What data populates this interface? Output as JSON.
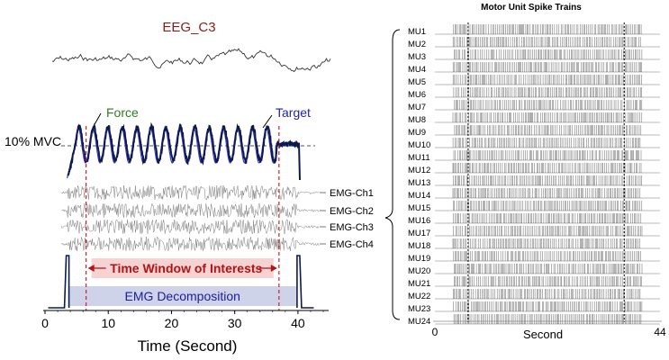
{
  "chart_data": [
    {
      "type": "line",
      "panel": "left",
      "eeg_label": "EEG_C3",
      "force_label": "Force",
      "target_label": "Target",
      "mvc_label": "10% MVC",
      "emg_channels": [
        "EMG-Ch1",
        "EMG-Ch2",
        "EMG-Ch3",
        "EMG-Ch4"
      ],
      "window_label": "Time Window of Interests",
      "decomp_label": "EMG Decomposition",
      "xlabel": "Time (Second)",
      "xticks": [
        0,
        10,
        20,
        30,
        40
      ],
      "xlim": [
        0,
        44
      ],
      "window_start": 6.5,
      "window_end": 37,
      "force_onset": 3.5,
      "force_offset": 40,
      "target_cycles": 15,
      "colors": {
        "eeg_label": "#8b1a1a",
        "force_label": "#2e7d1e",
        "target_label": "#1f1fb0",
        "force_line": "#0d1a4d",
        "target_line": "#3a3ad0",
        "window_line": "#d62020",
        "window_fill": "#f6d2d2",
        "window_text": "#b01515",
        "decomp_fill": "#cfd3ea",
        "decomp_text": "#1c1c9a",
        "emg": "#7a7a7a"
      }
    },
    {
      "type": "raster",
      "panel": "right",
      "title": "Motor Unit Spike Trains",
      "xlabel": "Second",
      "xticks": [
        0,
        44
      ],
      "xlim": [
        0,
        44
      ],
      "window_start": 6.5,
      "window_end": 37,
      "units": [
        "MU1",
        "MU2",
        "MU3",
        "MU4",
        "MU5",
        "MU6",
        "MU7",
        "MU8",
        "MU9",
        "MU10",
        "MU11",
        "MU12",
        "MU13",
        "MU14",
        "MU15",
        "MU16",
        "MU17",
        "MU18",
        "MU19",
        "MU20",
        "MU21",
        "MU22",
        "MU23",
        "MU24"
      ],
      "train_start": 3.5,
      "train_end": 40.5
    }
  ]
}
